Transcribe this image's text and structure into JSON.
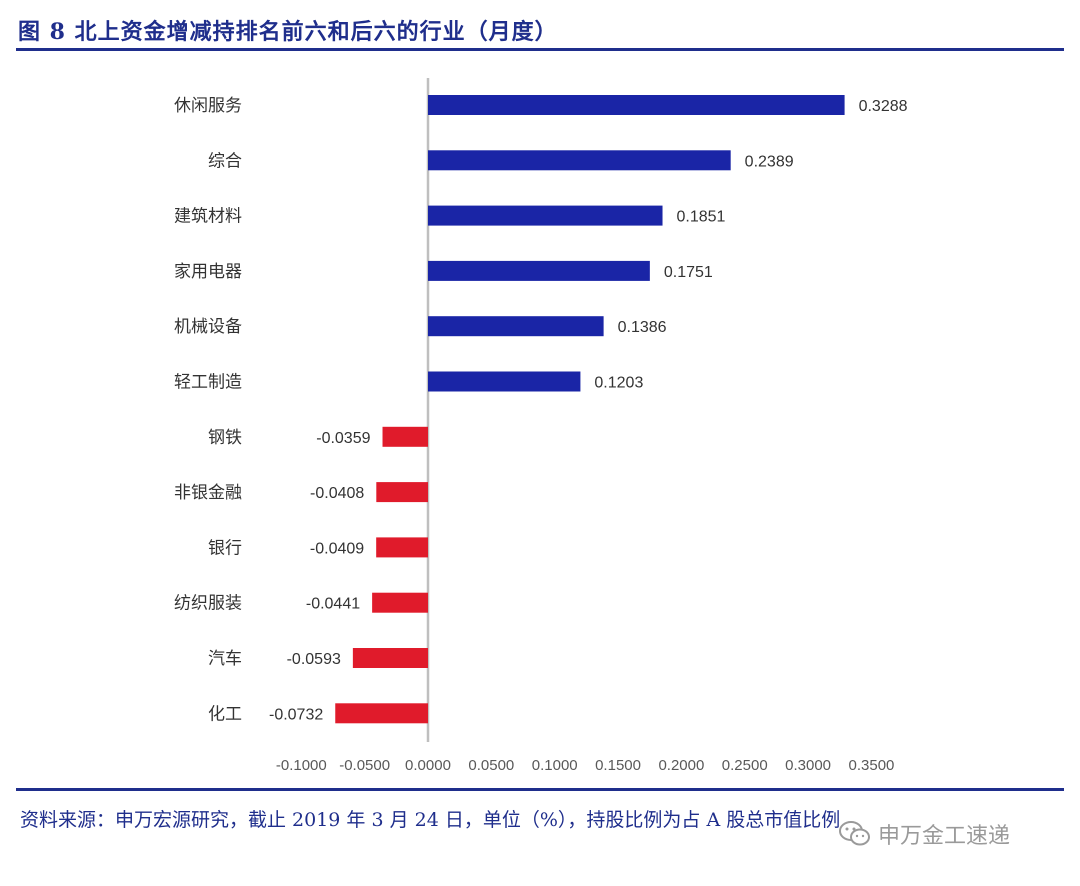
{
  "figure": {
    "title": "图 8  北上资金增减持排名前六和后六的行业（月度）",
    "note": "资料来源：申万宏源研究，截止 2019 年 3 月 24 日，单位（%），持股比例为占 A 股总市值比例",
    "watermark": "申万金工速递",
    "watermark_icon": "wechat-icon"
  },
  "colors": {
    "positive": "#1a25a6",
    "negative": "#e01b2b",
    "accent": "#1f2e8c",
    "axis": "#bfbfbf"
  },
  "chart_data": {
    "type": "bar",
    "orientation": "horizontal",
    "categories": [
      "休闲服务",
      "综合",
      "建筑材料",
      "家用电器",
      "机械设备",
      "轻工制造",
      "钢铁",
      "非银金融",
      "银行",
      "纺织服装",
      "汽车",
      "化工"
    ],
    "values": [
      0.3288,
      0.2389,
      0.1851,
      0.1751,
      0.1386,
      0.1203,
      -0.0359,
      -0.0408,
      -0.0409,
      -0.0441,
      -0.0593,
      -0.0732
    ],
    "value_labels": [
      "0.3288",
      "0.2389",
      "0.1851",
      "0.1751",
      "0.1386",
      "0.1203",
      "-0.0359",
      "-0.0408",
      "-0.0409",
      "-0.0441",
      "-0.0593",
      "-0.0732"
    ],
    "xlim": [
      -0.1,
      0.35
    ],
    "x_ticks": [
      -0.1,
      -0.05,
      0,
      0.05,
      0.1,
      0.15,
      0.2,
      0.25,
      0.3,
      0.35
    ],
    "x_tick_labels": [
      "-0.1000",
      "-0.0500",
      "0.0000",
      "0.0500",
      "0.1000",
      "0.1500",
      "0.2000",
      "0.2500",
      "0.3000",
      "0.3500"
    ],
    "grid": false,
    "legend": "none"
  }
}
